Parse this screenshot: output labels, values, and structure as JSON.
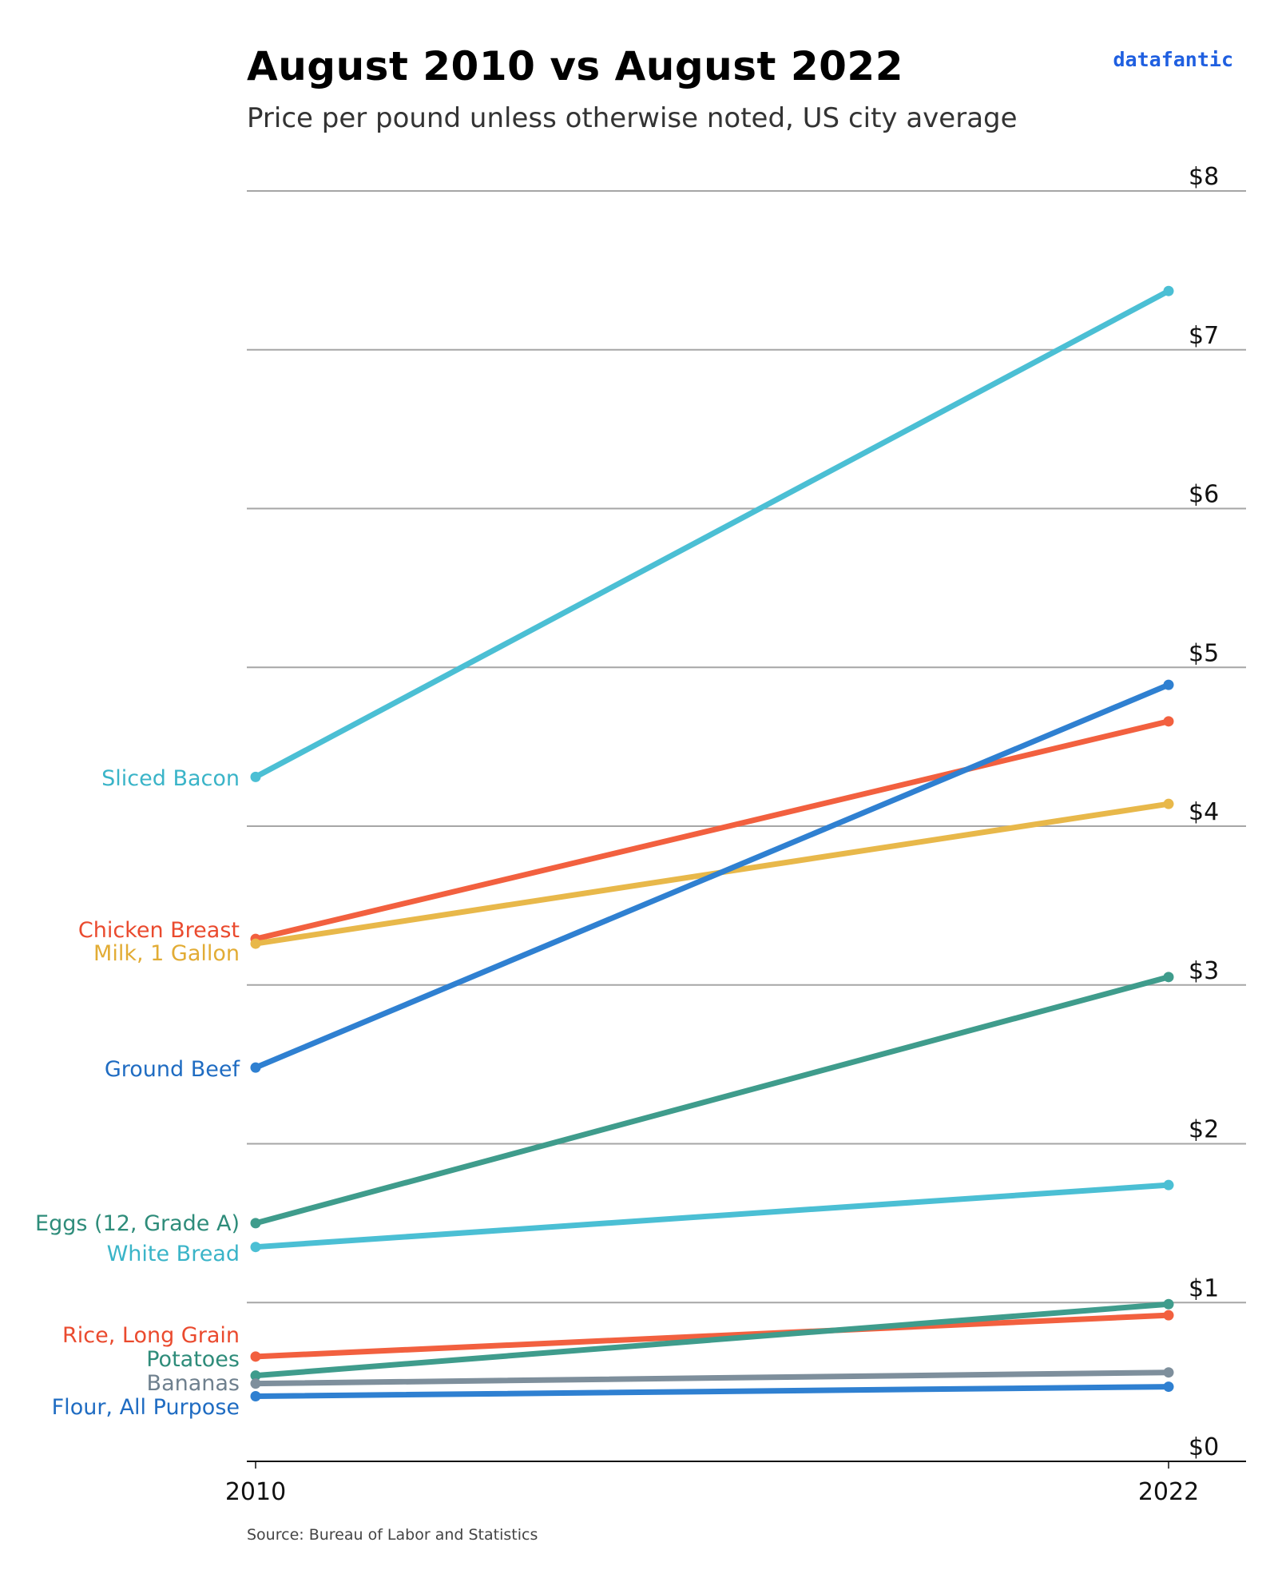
{
  "header": {
    "title": "August 2010 vs August 2022",
    "subtitle": "Price per pound unless otherwise noted, US city average",
    "brand": "datafantic"
  },
  "footer": {
    "source": "Source: Bureau of Labor and Statistics"
  },
  "chart_data": {
    "type": "line",
    "title": "August 2010 vs August 2022",
    "subtitle": "Price per pound unless otherwise noted, US city average",
    "xlabel": "",
    "ylabel": "",
    "x": [
      "2010",
      "2022"
    ],
    "ylim": [
      0,
      8
    ],
    "yticks": [
      0,
      1,
      2,
      3,
      4,
      5,
      6,
      7,
      8
    ],
    "ytick_labels": [
      "$0",
      "$1",
      "$2",
      "$3",
      "$4",
      "$5",
      "$6",
      "$7",
      "$8"
    ],
    "grid": "horizontal",
    "y_axis_position": "right",
    "legend": "direct labels at left",
    "series": [
      {
        "name": "Sliced Bacon",
        "values": [
          4.31,
          7.37
        ],
        "color": "#4bbfd4"
      },
      {
        "name": "Chicken Breast",
        "values": [
          3.29,
          4.66
        ],
        "color": "#f2603f"
      },
      {
        "name": "Milk, 1 Gallon",
        "values": [
          3.26,
          4.14
        ],
        "color": "#e8b84a"
      },
      {
        "name": "Ground Beef",
        "values": [
          2.48,
          4.89
        ],
        "color": "#2f80d1"
      },
      {
        "name": "Eggs (12, Grade A)",
        "values": [
          1.5,
          3.05
        ],
        "color": "#3f9c8c"
      },
      {
        "name": "White Bread",
        "values": [
          1.35,
          1.74
        ],
        "color": "#4bbfd4"
      },
      {
        "name": "Rice, Long Grain",
        "values": [
          0.66,
          0.92
        ],
        "color": "#f2603f"
      },
      {
        "name": "Potatoes",
        "values": [
          0.54,
          0.99
        ],
        "color": "#3f9c8c"
      },
      {
        "name": "Bananas",
        "values": [
          0.49,
          0.56
        ],
        "color": "#7e8f9c"
      },
      {
        "name": "Flour, All Purpose",
        "values": [
          0.41,
          0.47
        ],
        "color": "#2f80d1"
      }
    ],
    "label_colors": {
      "Sliced Bacon": "#3ab4c8",
      "Chicken Breast": "#ea4a2e",
      "Milk, 1 Gallon": "#e2ac35",
      "Ground Beef": "#1f6cc2",
      "Eggs (12, Grade A)": "#2e8c7a",
      "White Bread": "#3ab4c8",
      "Rice, Long Grain": "#ea4a2e",
      "Potatoes": "#2e8c7a",
      "Bananas": "#6f808e",
      "Flour, All Purpose": "#1f6cc2"
    }
  }
}
